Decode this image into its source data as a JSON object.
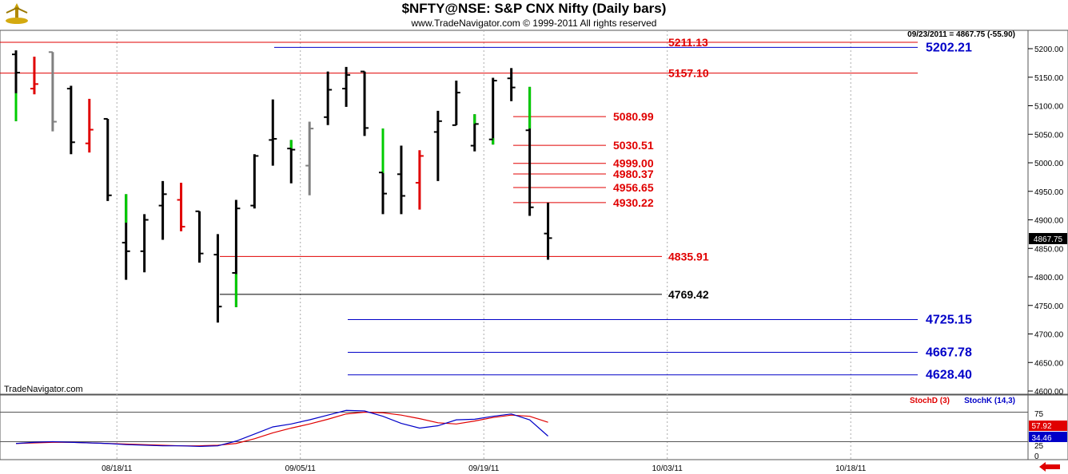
{
  "header": {
    "title": "$NFTY@NSE:  S&P CNX Nifty  (Daily bars)",
    "subtitle": "www.TradeNavigator.com © 1999-2011 All rights reserved",
    "logo_icon": "trade-navigator-logo-icon"
  },
  "price_panel": {
    "readout": "09/23/2011 = 4867.75 (-55.90)",
    "watermark": "TradeNavigator.com",
    "current_price": "4867.75",
    "y_ticks": [
      "5200.00",
      "5150.00",
      "5100.00",
      "5050.00",
      "5000.00",
      "4950.00",
      "4900.00",
      "4850.00",
      "4800.00",
      "4750.00",
      "4700.00",
      "4650.00",
      "4600.00"
    ]
  },
  "indicator_panel": {
    "legend_d": "StochD (3)",
    "legend_k": "StochK (14,3)",
    "y_ticks": [
      "75",
      "25",
      "0"
    ],
    "stochd_value": "57.92",
    "stochk_value": "34.46"
  },
  "x_ticks": [
    "08/18/11",
    "09/05/11",
    "09/19/11",
    "10/03/11",
    "10/18/11"
  ],
  "colors": {
    "red_level": "#e00000",
    "blue_level": "#0000c8",
    "black_level": "#000000",
    "bar_up": "#00cc00",
    "bar_down": "#e00000",
    "bar_neutral": "#808080",
    "bar_normal": "#000000",
    "stochd_line": "#e00000",
    "stochk_line": "#0000c8"
  },
  "chart_data": {
    "type": "ohlc",
    "title": "$NFTY@NSE:  S&P CNX Nifty  (Daily bars)",
    "ylim": [
      4600,
      5230
    ],
    "y_ticks": [
      5200,
      5150,
      5100,
      5050,
      5000,
      4950,
      4900,
      4850,
      4800,
      4750,
      4700,
      4650,
      4600
    ],
    "x_tick_labels": [
      "08/18/11",
      "09/05/11",
      "09/19/11",
      "10/03/11",
      "10/18/11"
    ],
    "x_tick_bar_index": [
      5.5,
      15.5,
      25.5,
      35.5,
      45.5
    ],
    "bars": [
      {
        "i": 0,
        "o": 5190,
        "h": 5197,
        "l": 5073,
        "c": 5158,
        "color": "mixed",
        "wick": [
          5073,
          5122
        ]
      },
      {
        "i": 1,
        "o": 5130,
        "h": 5186,
        "l": 5120,
        "c": 5138,
        "color": "red"
      },
      {
        "i": 2,
        "o": 5194,
        "h": 5194,
        "l": 5055,
        "c": 5072,
        "color": "gray"
      },
      {
        "i": 3,
        "o": 5130,
        "h": 5135,
        "l": 5015,
        "c": 5036,
        "color": "black"
      },
      {
        "i": 4,
        "o": 5034,
        "h": 5112,
        "l": 5018,
        "c": 5058,
        "color": "red"
      },
      {
        "i": 5,
        "o": 5077,
        "h": 5077,
        "l": 4933,
        "c": 4943,
        "color": "black"
      },
      {
        "i": 6,
        "o": 4860,
        "h": 4945,
        "l": 4795,
        "c": 4845,
        "color": "mixed",
        "wick": [
          4895,
          4945
        ]
      },
      {
        "i": 7,
        "o": 4845,
        "h": 4910,
        "l": 4808,
        "c": 4900,
        "color": "black"
      },
      {
        "i": 8,
        "o": 4925,
        "h": 4968,
        "l": 4865,
        "c": 4945,
        "color": "black"
      },
      {
        "i": 9,
        "o": 4935,
        "h": 4965,
        "l": 4880,
        "c": 4888,
        "color": "red"
      },
      {
        "i": 10,
        "o": 4915,
        "h": 4915,
        "l": 4825,
        "c": 4841,
        "color": "black"
      },
      {
        "i": 11,
        "o": 4839,
        "h": 4875,
        "l": 4720,
        "c": 4748,
        "color": "black"
      },
      {
        "i": 12,
        "o": 4807,
        "h": 4935,
        "l": 4747,
        "c": 4920,
        "color": "mixed",
        "wick": [
          4747,
          4805
        ]
      },
      {
        "i": 13,
        "o": 4925,
        "h": 5015,
        "l": 4920,
        "c": 5012,
        "color": "black"
      },
      {
        "i": 14,
        "o": 5040,
        "h": 5111,
        "l": 4995,
        "c": 5042,
        "color": "black"
      },
      {
        "i": 15,
        "o": 5025,
        "h": 5040,
        "l": 4964,
        "c": 5023,
        "color": "mixed",
        "wick": [
          5025,
          5040
        ]
      },
      {
        "i": 16,
        "o": 4995,
        "h": 5072,
        "l": 4943,
        "c": 5060,
        "color": "gray"
      },
      {
        "i": 17,
        "o": 5080,
        "h": 5160,
        "l": 5066,
        "c": 5128,
        "color": "black"
      },
      {
        "i": 18,
        "o": 5130,
        "h": 5168,
        "l": 5098,
        "c": 5154,
        "color": "black"
      },
      {
        "i": 19,
        "o": 5160,
        "h": 5160,
        "l": 5047,
        "c": 5061,
        "color": "black"
      },
      {
        "i": 20,
        "o": 4983,
        "h": 5060,
        "l": 4910,
        "c": 4946,
        "color": "mixed",
        "wick": [
          4982,
          5060
        ]
      },
      {
        "i": 21,
        "o": 4980,
        "h": 5030,
        "l": 4910,
        "c": 4942,
        "color": "black"
      },
      {
        "i": 22,
        "o": 4965,
        "h": 5022,
        "l": 4918,
        "c": 5012,
        "color": "red"
      },
      {
        "i": 23,
        "o": 5054,
        "h": 5091,
        "l": 4968,
        "c": 5073,
        "color": "black"
      },
      {
        "i": 24,
        "o": 5066,
        "h": 5144,
        "l": 5066,
        "c": 5123,
        "color": "black"
      },
      {
        "i": 25,
        "o": 5030,
        "h": 5085,
        "l": 5020,
        "c": 5068,
        "color": "mixed",
        "wick": [
          5068,
          5085
        ]
      },
      {
        "i": 26,
        "o": 5041,
        "h": 5149,
        "l": 5032,
        "c": 5144,
        "color": "mixed",
        "wick": [
          5032,
          5043
        ]
      },
      {
        "i": 27,
        "o": 5148,
        "h": 5166,
        "l": 5108,
        "c": 5132,
        "color": "black"
      },
      {
        "i": 28,
        "o": 5057,
        "h": 5133,
        "l": 4907,
        "c": 4922,
        "color": "mixed",
        "wick": [
          5060,
          5133
        ]
      },
      {
        "i": 29,
        "o": 4876,
        "h": 4930,
        "l": 4830,
        "c": 4868,
        "color": "black"
      }
    ],
    "levels": [
      {
        "label": "5211.13",
        "value": 5211.13,
        "color": "red"
      },
      {
        "label": "5202.21",
        "value": 5202.21,
        "color": "blue"
      },
      {
        "label": "5157.10",
        "value": 5157.1,
        "color": "red"
      },
      {
        "label": "5080.99",
        "value": 5080.99,
        "color": "red"
      },
      {
        "label": "5030.51",
        "value": 5030.51,
        "color": "red"
      },
      {
        "label": "4999.00",
        "value": 4999.0,
        "color": "red"
      },
      {
        "label": "4980.37",
        "value": 4980.37,
        "color": "red"
      },
      {
        "label": "4956.65",
        "value": 4956.65,
        "color": "red"
      },
      {
        "label": "4930.22",
        "value": 4930.22,
        "color": "red"
      },
      {
        "label": "4835.91",
        "value": 4835.91,
        "color": "red"
      },
      {
        "label": "4769.42",
        "value": 4769.42,
        "color": "black"
      },
      {
        "label": "4725.15",
        "value": 4725.15,
        "color": "blue"
      },
      {
        "label": "4667.78",
        "value": 4667.78,
        "color": "blue"
      },
      {
        "label": "4628.40",
        "value": 4628.4,
        "color": "blue"
      }
    ],
    "stochastic": {
      "ylim": [
        0,
        100
      ],
      "reference_lines": [
        75,
        25
      ],
      "stochd": [
        22,
        23,
        24,
        24,
        23,
        22,
        21,
        20,
        19,
        18,
        18,
        19,
        22,
        30,
        40,
        48,
        55,
        63,
        72,
        75,
        74,
        70,
        64,
        57,
        55,
        60,
        66,
        70,
        68,
        57.92
      ],
      "stochk": [
        22,
        24,
        25,
        24,
        23,
        22,
        20,
        19,
        18,
        18,
        17,
        18,
        26,
        38,
        50,
        55,
        62,
        70,
        78,
        77,
        68,
        56,
        48,
        52,
        62,
        63,
        68,
        72,
        62,
        34.46
      ]
    }
  }
}
